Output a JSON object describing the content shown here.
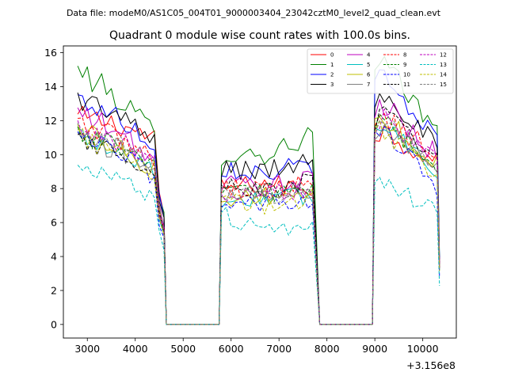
{
  "chart_data": {
    "type": "line",
    "suptitle": "Data file: modeM0/AS1C05_004T01_9000003404_23042cztM0_level2_quad_clean.evt",
    "title": "Quadrant 0 module wise count rates with 100.0s bins.",
    "xlabel": "",
    "ylabel": "",
    "x_offset_label": "+3.156e8",
    "xlim": [
      2500,
      10700
    ],
    "ylim": [
      -0.8,
      16.4
    ],
    "x_ticks": [
      3000,
      4000,
      5000,
      6000,
      7000,
      8000,
      9000,
      10000
    ],
    "y_ticks": [
      0,
      2,
      4,
      6,
      8,
      10,
      12,
      14,
      16
    ],
    "legend_position": "top-right",
    "segments": [
      {
        "x_start": 2800,
        "x_end": 4500
      },
      {
        "x_start": 5800,
        "x_end": 7700
      },
      {
        "x_start": 9000,
        "x_end": 10300
      }
    ],
    "gap_x": [
      4650,
      5750,
      7850,
      8950
    ],
    "series": [
      {
        "name": "0",
        "color": "#ff0000",
        "dash": "solid",
        "levels": [
          12.2,
          10.8,
          8.0,
          8.3,
          8.0,
          11.5,
          9.5
        ]
      },
      {
        "name": "1",
        "color": "#008000",
        "dash": "solid",
        "levels": [
          15.0,
          11.0,
          10.0,
          10.0,
          11.2,
          15.5,
          11.3
        ]
      },
      {
        "name": "2",
        "color": "#0000ff",
        "dash": "solid",
        "levels": [
          13.3,
          10.5,
          9.3,
          8.9,
          9.5,
          14.5,
          11.0
        ]
      },
      {
        "name": "3",
        "color": "#000000",
        "dash": "solid",
        "levels": [
          13.4,
          10.5,
          9.2,
          9.0,
          9.8,
          14.0,
          10.5
        ]
      },
      {
        "name": "4",
        "color": "#bf00bf",
        "dash": "solid",
        "levels": [
          12.5,
          9.5,
          8.3,
          8.2,
          8.5,
          13.0,
          10.0
        ]
      },
      {
        "name": "5",
        "color": "#00bfbf",
        "dash": "solid",
        "levels": [
          11.2,
          8.8,
          7.2,
          7.5,
          7.5,
          12.0,
          9.2
        ]
      },
      {
        "name": "6",
        "color": "#bfbf00",
        "dash": "solid",
        "levels": [
          11.5,
          9.0,
          7.5,
          7.5,
          7.8,
          12.2,
          9.5
        ]
      },
      {
        "name": "7",
        "color": "#808080",
        "dash": "solid",
        "levels": [
          11.0,
          9.0,
          7.8,
          7.8,
          8.0,
          12.0,
          9.3
        ]
      },
      {
        "name": "8",
        "color": "#ff0000",
        "dash": "dashed",
        "levels": [
          11.8,
          9.5,
          8.0,
          8.0,
          8.2,
          12.5,
          9.8
        ]
      },
      {
        "name": "9",
        "color": "#008000",
        "dash": "dashed",
        "levels": [
          11.3,
          9.0,
          7.8,
          7.8,
          7.8,
          12.0,
          9.2
        ]
      },
      {
        "name": "10",
        "color": "#0000ff",
        "dash": "dashed",
        "levels": [
          11.0,
          8.5,
          7.0,
          7.2,
          7.3,
          11.5,
          8.0
        ]
      },
      {
        "name": "11",
        "color": "#000000",
        "dash": "dashed",
        "levels": [
          10.8,
          9.0,
          8.2,
          7.8,
          8.5,
          12.5,
          9.5
        ]
      },
      {
        "name": "12",
        "color": "#bf00bf",
        "dash": "dashed",
        "levels": [
          11.6,
          9.3,
          7.6,
          7.8,
          8.0,
          12.2,
          9.6
        ]
      },
      {
        "name": "13",
        "color": "#00bfbf",
        "dash": "dashed",
        "levels": [
          9.0,
          7.3,
          6.5,
          5.5,
          6.0,
          8.7,
          6.5
        ]
      },
      {
        "name": "14",
        "color": "#bfbf00",
        "dash": "dashed",
        "levels": [
          11.0,
          8.8,
          7.3,
          7.0,
          7.2,
          11.5,
          9.0
        ]
      },
      {
        "name": "15",
        "color": "#808080",
        "dash": "dashed",
        "levels": [
          11.4,
          9.2,
          7.9,
          7.6,
          7.9,
          12.3,
          9.4
        ]
      }
    ]
  }
}
